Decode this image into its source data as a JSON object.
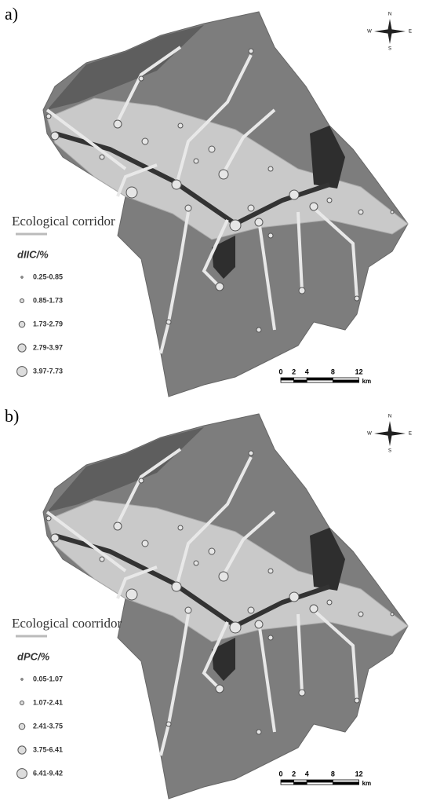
{
  "panels": [
    {
      "label": "a)",
      "legend": {
        "title": "Ecological corridor",
        "index_title": "dIIC/%",
        "classes": [
          "0.25-0.85",
          "0.85-1.73",
          "1.73-2.79",
          "2.79-3.97",
          "3.97-7.73"
        ]
      },
      "scale_bar": {
        "ticks": [
          0,
          2,
          4,
          8,
          12
        ],
        "unit": "km"
      },
      "compass": [
        "N",
        "S",
        "E",
        "W"
      ]
    },
    {
      "label": "b)",
      "legend": {
        "title": "Ecological coorridor",
        "index_title": "dPC/%",
        "classes": [
          "0.05-1.07",
          "1.07-2.41",
          "2.41-3.75",
          "3.75-6.41",
          "6.41-9.42"
        ]
      },
      "scale_bar": {
        "ticks": [
          0,
          2,
          4,
          8,
          12
        ],
        "unit": "km"
      },
      "compass": [
        "N",
        "S",
        "E",
        "W"
      ]
    }
  ]
}
